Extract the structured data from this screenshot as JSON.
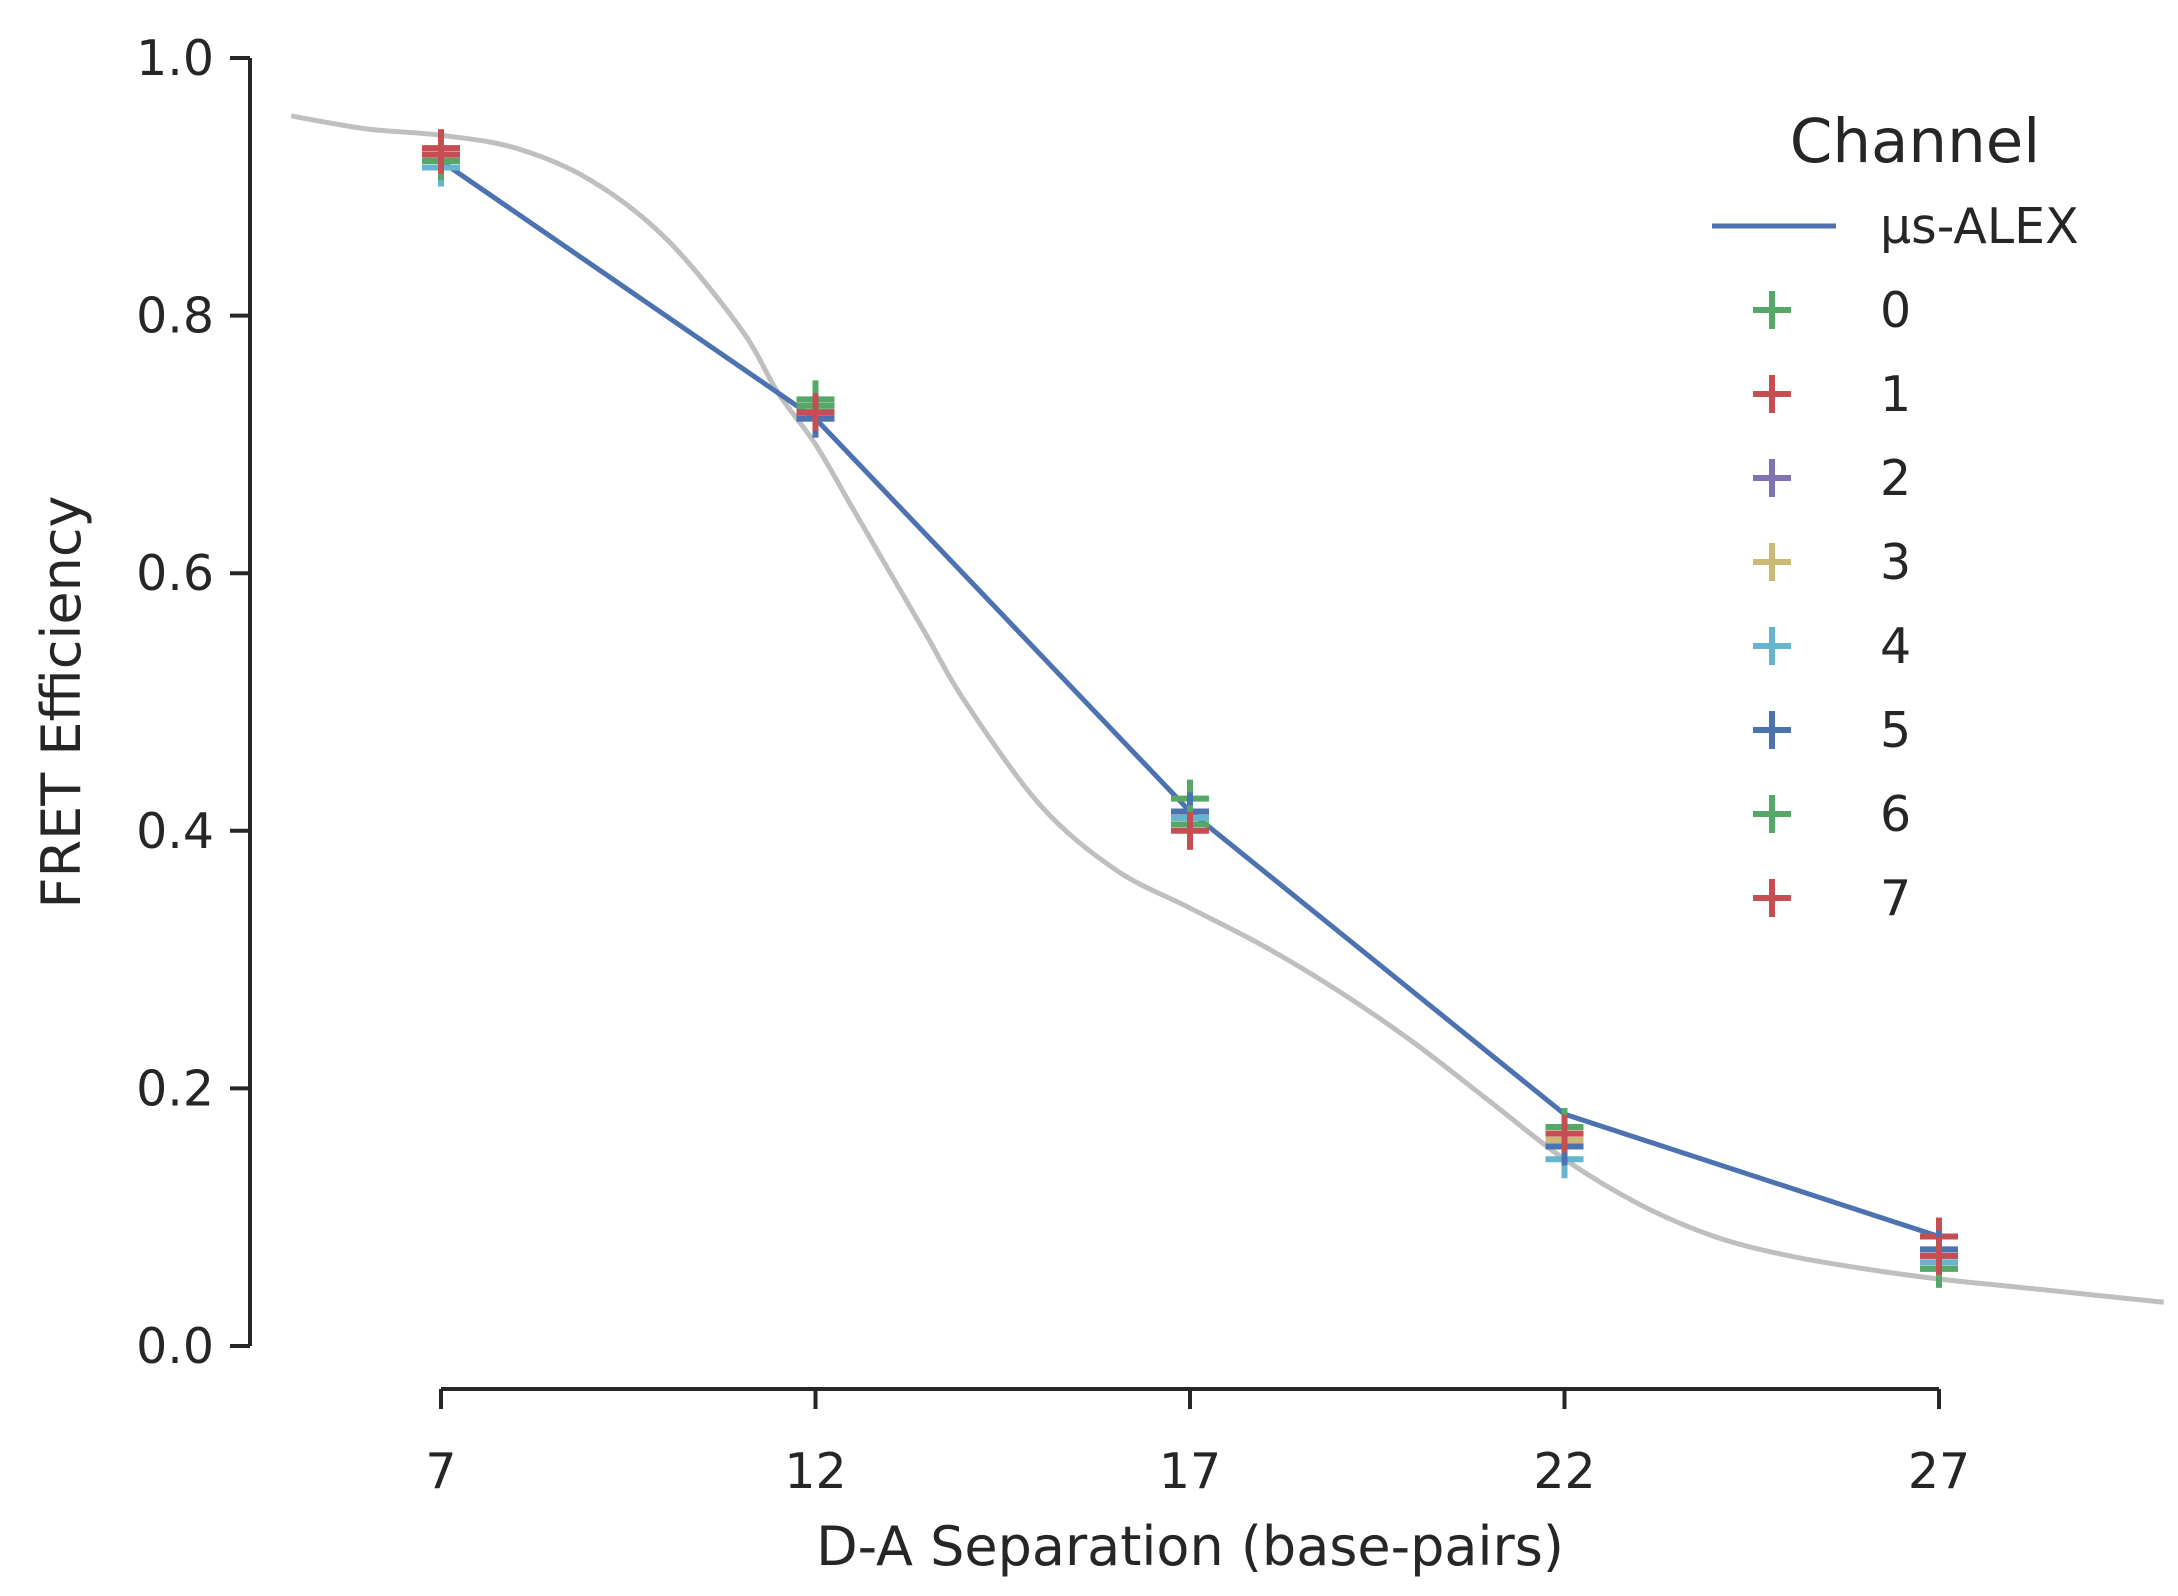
{
  "chart_data": {
    "type": "line",
    "xlabel": "D-A Separation (base-pairs)",
    "ylabel": "FRET Efficiency",
    "xlim": [
      2.7,
      30.2
    ],
    "ylim": [
      -0.06,
      1.0
    ],
    "x_ticks": [
      "7",
      "12",
      "17",
      "22",
      "27"
    ],
    "y_ticks": [
      "0.0",
      "0.2",
      "0.4",
      "0.6",
      "0.8",
      "1.0"
    ],
    "grid": false,
    "legend_position": "top-right",
    "legend_title": "Channel",
    "x": [
      7,
      12,
      17,
      22,
      27
    ],
    "line_series": {
      "name": "μs-ALEX",
      "color": "#4c72b0",
      "values": [
        0.92,
        0.72,
        0.415,
        0.18,
        0.085
      ]
    },
    "model_curve": {
      "color": "#bfbfbf",
      "x": [
        5,
        6,
        7,
        8,
        9,
        10,
        11,
        11.5,
        12,
        12.5,
        13,
        13.5,
        14,
        15,
        16,
        17,
        18,
        19,
        20,
        21,
        22,
        23,
        24,
        25,
        26,
        27,
        28,
        29,
        30
      ],
      "y": [
        0.955,
        0.945,
        0.94,
        0.93,
        0.905,
        0.86,
        0.79,
        0.74,
        0.7,
        0.65,
        0.6,
        0.55,
        0.5,
        0.42,
        0.37,
        0.34,
        0.31,
        0.275,
        0.235,
        0.19,
        0.145,
        0.11,
        0.085,
        0.07,
        0.06,
        0.052,
        0.046,
        0.04,
        0.034
      ]
    },
    "marker_series": [
      {
        "name": "0",
        "color": "#55a868",
        "values": [
          0.915,
          0.735,
          0.425,
          0.165,
          0.06
        ]
      },
      {
        "name": "1",
        "color": "#c44e52",
        "values": [
          0.93,
          0.725,
          0.41,
          0.16,
          0.085
        ]
      },
      {
        "name": "2",
        "color": "#8172b2",
        "values": [
          0.92,
          0.72,
          0.415,
          0.155,
          0.07
        ]
      },
      {
        "name": "3",
        "color": "#ccb974",
        "values": [
          0.925,
          0.73,
          0.41,
          0.16,
          0.07
        ]
      },
      {
        "name": "4",
        "color": "#64b5cd",
        "values": [
          0.915,
          0.725,
          0.41,
          0.145,
          0.065
        ]
      },
      {
        "name": "5",
        "color": "#4c72b0",
        "values": [
          0.925,
          0.72,
          0.415,
          0.155,
          0.075
        ]
      },
      {
        "name": "6",
        "color": "#55a868",
        "values": [
          0.92,
          0.73,
          0.405,
          0.17,
          0.06
        ]
      },
      {
        "name": "7",
        "color": "#c44e52",
        "values": [
          0.925,
          0.725,
          0.4,
          0.165,
          0.07
        ]
      }
    ]
  }
}
